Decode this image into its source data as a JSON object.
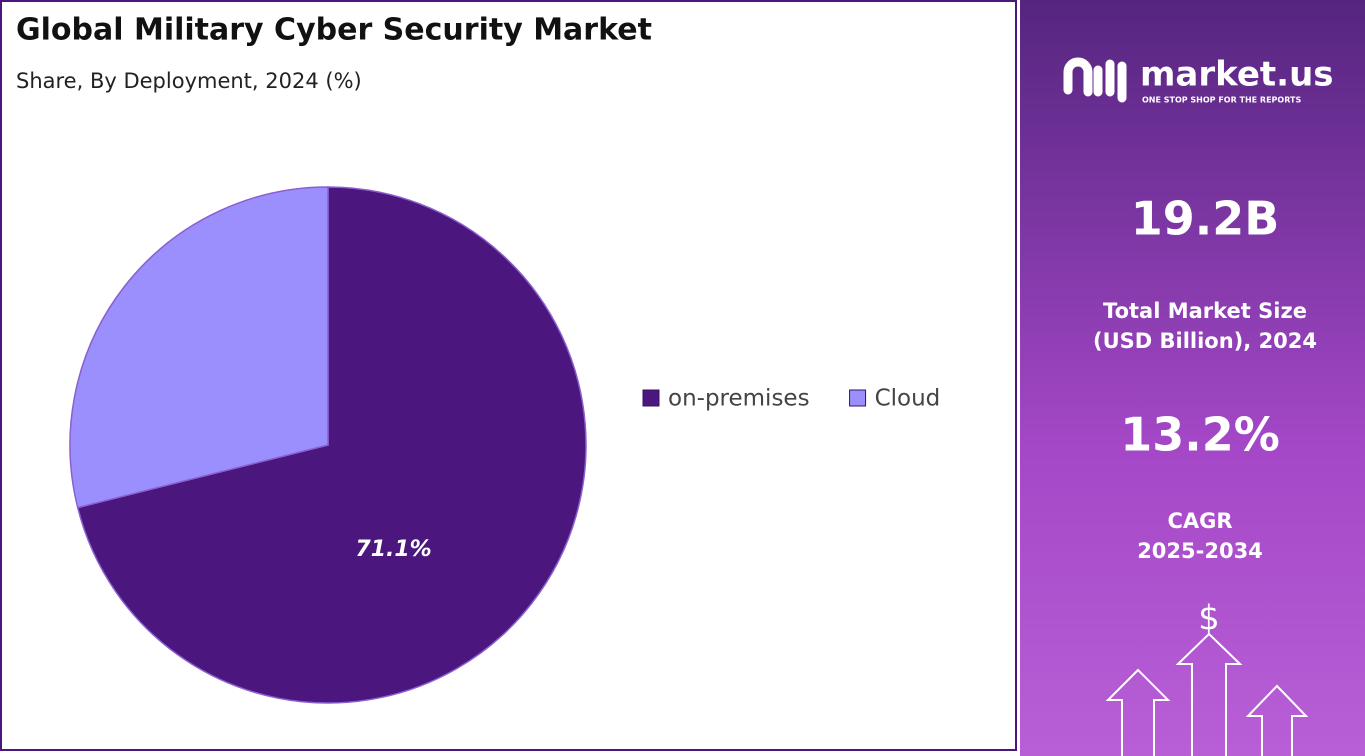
{
  "chart_data": {
    "type": "pie",
    "title": "Global Military Cyber Security Market",
    "subtitle": "Share, By Deployment, 2024 (%)",
    "categories": [
      "on-premises",
      "Cloud"
    ],
    "values": [
      71.1,
      28.9
    ],
    "value_labels": [
      "71.1%",
      null
    ],
    "colors": [
      "#4b167e",
      "#9b8ffe"
    ]
  },
  "panel": {
    "logo": "market.us",
    "tagline": "ONE STOP SHOP FOR THE REPORTS",
    "market_size": "19.2B",
    "market_size_label": [
      "Total Market Size",
      "(USD Billion), 2024"
    ],
    "cagr": "13.2%",
    "cagr_label": [
      "CAGR",
      "2025-2034"
    ],
    "icon": "$"
  }
}
